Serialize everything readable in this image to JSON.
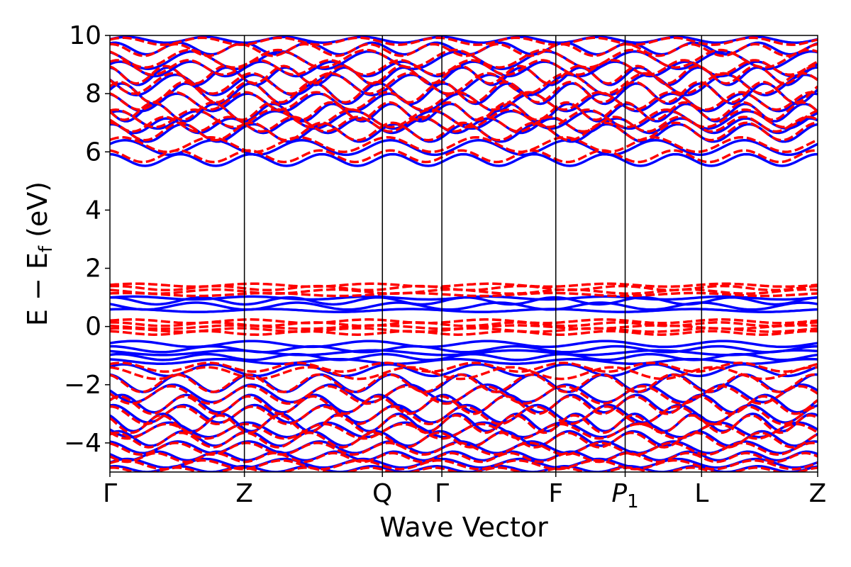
{
  "chart_data": {
    "type": "line",
    "title": "",
    "xlabel": "Wave Vector",
    "ylabel": "E − E_f (eV)",
    "ylabel_parts": {
      "main": "E − E",
      "sub": "f",
      "unit": " (eV)"
    },
    "ylim": [
      -5,
      10
    ],
    "yticks": [
      -4,
      -2,
      0,
      2,
      4,
      6,
      8,
      10
    ],
    "ytick_labels": [
      "−4",
      "−2",
      "0",
      "2",
      "4",
      "6",
      "8",
      "10"
    ],
    "x_range": [
      0,
      1
    ],
    "kpoints": [
      {
        "label": "Γ",
        "x": 0.0
      },
      {
        "label": "Z",
        "x": 0.19
      },
      {
        "label": "Q",
        "x": 0.385
      },
      {
        "label": "Γ",
        "x": 0.469
      },
      {
        "label": "F",
        "x": 0.63
      },
      {
        "label": "P",
        "sub": "1",
        "italic": true,
        "x": 0.728
      },
      {
        "label": "L",
        "x": 0.836
      },
      {
        "label": "Z",
        "x": 1.0
      }
    ],
    "grid": false,
    "legend": "none",
    "series": [
      {
        "style": "solid",
        "color": "#0000ff",
        "bands": [
          {
            "base": 9.85,
            "amp": 0.1,
            "freq": 9,
            "phase": 0.2
          },
          {
            "base": 9.55,
            "amp": 0.2,
            "freq": 11,
            "phase": 1.1
          },
          {
            "base": 9.15,
            "amp": 0.3,
            "freq": 8,
            "phase": 2.0
          },
          {
            "base": 8.85,
            "amp": 0.25,
            "freq": 10,
            "phase": 0.7
          },
          {
            "base": 8.6,
            "amp": 0.3,
            "freq": 12,
            "phase": 1.7
          },
          {
            "base": 8.3,
            "amp": 0.35,
            "freq": 9,
            "phase": 2.6
          },
          {
            "base": 8.0,
            "amp": 0.35,
            "freq": 11,
            "phase": 0.4
          },
          {
            "base": 7.7,
            "amp": 0.3,
            "freq": 10,
            "phase": 1.9
          },
          {
            "base": 7.35,
            "amp": 0.3,
            "freq": 12,
            "phase": 3.0
          },
          {
            "base": 7.1,
            "amp": 0.3,
            "freq": 9,
            "phase": 0.9
          },
          {
            "base": 6.9,
            "amp": 0.25,
            "freq": 11,
            "phase": 2.3
          },
          {
            "base": 6.65,
            "amp": 0.3,
            "freq": 10,
            "phase": 1.4
          },
          {
            "base": 6.15,
            "amp": 0.25,
            "freq": 8,
            "phase": 0.5
          },
          {
            "base": 5.72,
            "amp": 0.2,
            "freq": 10,
            "phase": 1.6
          },
          {
            "base": 0.98,
            "amp": 0.05,
            "freq": 6,
            "phase": 0.3
          },
          {
            "base": 0.88,
            "amp": 0.12,
            "freq": 8,
            "phase": 1.4
          },
          {
            "base": 0.7,
            "amp": 0.12,
            "freq": 7,
            "phase": 2.5
          },
          {
            "base": 0.55,
            "amp": 0.05,
            "freq": 5,
            "phase": 0.8
          },
          {
            "base": -0.6,
            "amp": 0.1,
            "freq": 6,
            "phase": 0.3
          },
          {
            "base": -0.78,
            "amp": 0.1,
            "freq": 7,
            "phase": 1.5
          },
          {
            "base": -0.9,
            "amp": 0.08,
            "freq": 5,
            "phase": 2.4
          },
          {
            "base": -1.05,
            "amp": 0.1,
            "freq": 8,
            "phase": 0.9
          },
          {
            "base": -1.2,
            "amp": 0.08,
            "freq": 6,
            "phase": 2.0
          },
          {
            "base": -1.5,
            "amp": 0.2,
            "freq": 8,
            "phase": 0.6
          },
          {
            "base": -1.95,
            "amp": 0.3,
            "freq": 10,
            "phase": 1.7
          },
          {
            "base": -2.3,
            "amp": 0.3,
            "freq": 9,
            "phase": 2.8
          },
          {
            "base": -2.65,
            "amp": 0.3,
            "freq": 11,
            "phase": 0.4
          },
          {
            "base": -3.0,
            "amp": 0.3,
            "freq": 10,
            "phase": 1.3
          },
          {
            "base": -3.3,
            "amp": 0.3,
            "freq": 12,
            "phase": 2.2
          },
          {
            "base": -3.55,
            "amp": 0.25,
            "freq": 9,
            "phase": 3.1
          },
          {
            "base": -3.85,
            "amp": 0.25,
            "freq": 11,
            "phase": 0.7
          },
          {
            "base": -4.15,
            "amp": 0.2,
            "freq": 10,
            "phase": 1.8
          },
          {
            "base": -4.45,
            "amp": 0.15,
            "freq": 12,
            "phase": 2.7
          },
          {
            "base": -4.7,
            "amp": 0.15,
            "freq": 9,
            "phase": 0.2
          },
          {
            "base": -4.9,
            "amp": 0.1,
            "freq": 11,
            "phase": 1.1
          }
        ]
      },
      {
        "style": "dashed",
        "color": "#ff0000",
        "bands": [
          {
            "base": 9.8,
            "amp": 0.12,
            "freq": 9,
            "phase": 0.5
          },
          {
            "base": 9.5,
            "amp": 0.2,
            "freq": 11,
            "phase": 1.4
          },
          {
            "base": 9.2,
            "amp": 0.3,
            "freq": 8,
            "phase": 2.2
          },
          {
            "base": 8.9,
            "amp": 0.25,
            "freq": 10,
            "phase": 0.9
          },
          {
            "base": 8.65,
            "amp": 0.3,
            "freq": 12,
            "phase": 1.9
          },
          {
            "base": 8.35,
            "amp": 0.35,
            "freq": 9,
            "phase": 2.8
          },
          {
            "base": 8.05,
            "amp": 0.35,
            "freq": 11,
            "phase": 0.6
          },
          {
            "base": 7.75,
            "amp": 0.3,
            "freq": 10,
            "phase": 2.1
          },
          {
            "base": 7.4,
            "amp": 0.3,
            "freq": 12,
            "phase": 3.2
          },
          {
            "base": 7.15,
            "amp": 0.3,
            "freq": 9,
            "phase": 1.1
          },
          {
            "base": 6.95,
            "amp": 0.25,
            "freq": 11,
            "phase": 2.5
          },
          {
            "base": 6.7,
            "amp": 0.3,
            "freq": 10,
            "phase": 1.6
          },
          {
            "base": 6.25,
            "amp": 0.25,
            "freq": 8,
            "phase": 0.7
          },
          {
            "base": 5.85,
            "amp": 0.2,
            "freq": 10,
            "phase": 1.8
          },
          {
            "base": 1.42,
            "amp": 0.05,
            "freq": 6,
            "phase": 0.2
          },
          {
            "base": 1.32,
            "amp": 0.07,
            "freq": 7,
            "phase": 1.2
          },
          {
            "base": 1.2,
            "amp": 0.07,
            "freq": 6,
            "phase": 2.2
          },
          {
            "base": 1.1,
            "amp": 0.05,
            "freq": 5,
            "phase": 0.8
          },
          {
            "base": 0.18,
            "amp": 0.06,
            "freq": 6,
            "phase": 0.4
          },
          {
            "base": 0.08,
            "amp": 0.06,
            "freq": 7,
            "phase": 1.4
          },
          {
            "base": -0.02,
            "amp": 0.06,
            "freq": 5,
            "phase": 2.3
          },
          {
            "base": -0.12,
            "amp": 0.06,
            "freq": 6,
            "phase": 0.9
          },
          {
            "base": -0.22,
            "amp": 0.06,
            "freq": 7,
            "phase": 1.9
          },
          {
            "base": -1.4,
            "amp": 0.15,
            "freq": 8,
            "phase": 0.8
          },
          {
            "base": -1.6,
            "amp": 0.2,
            "freq": 7,
            "phase": 1.8
          },
          {
            "base": -1.95,
            "amp": 0.3,
            "freq": 10,
            "phase": 1.9
          },
          {
            "base": -2.35,
            "amp": 0.3,
            "freq": 9,
            "phase": 3.0
          },
          {
            "base": -2.7,
            "amp": 0.3,
            "freq": 11,
            "phase": 0.6
          },
          {
            "base": -3.05,
            "amp": 0.3,
            "freq": 10,
            "phase": 1.5
          },
          {
            "base": -3.35,
            "amp": 0.3,
            "freq": 12,
            "phase": 2.4
          },
          {
            "base": -3.6,
            "amp": 0.25,
            "freq": 9,
            "phase": 3.3
          },
          {
            "base": -3.9,
            "amp": 0.25,
            "freq": 11,
            "phase": 0.9
          },
          {
            "base": -4.2,
            "amp": 0.2,
            "freq": 10,
            "phase": 2.0
          },
          {
            "base": -4.5,
            "amp": 0.15,
            "freq": 12,
            "phase": 2.9
          },
          {
            "base": -4.75,
            "amp": 0.15,
            "freq": 9,
            "phase": 0.4
          },
          {
            "base": -4.95,
            "amp": 0.1,
            "freq": 11,
            "phase": 1.3
          }
        ]
      }
    ]
  }
}
